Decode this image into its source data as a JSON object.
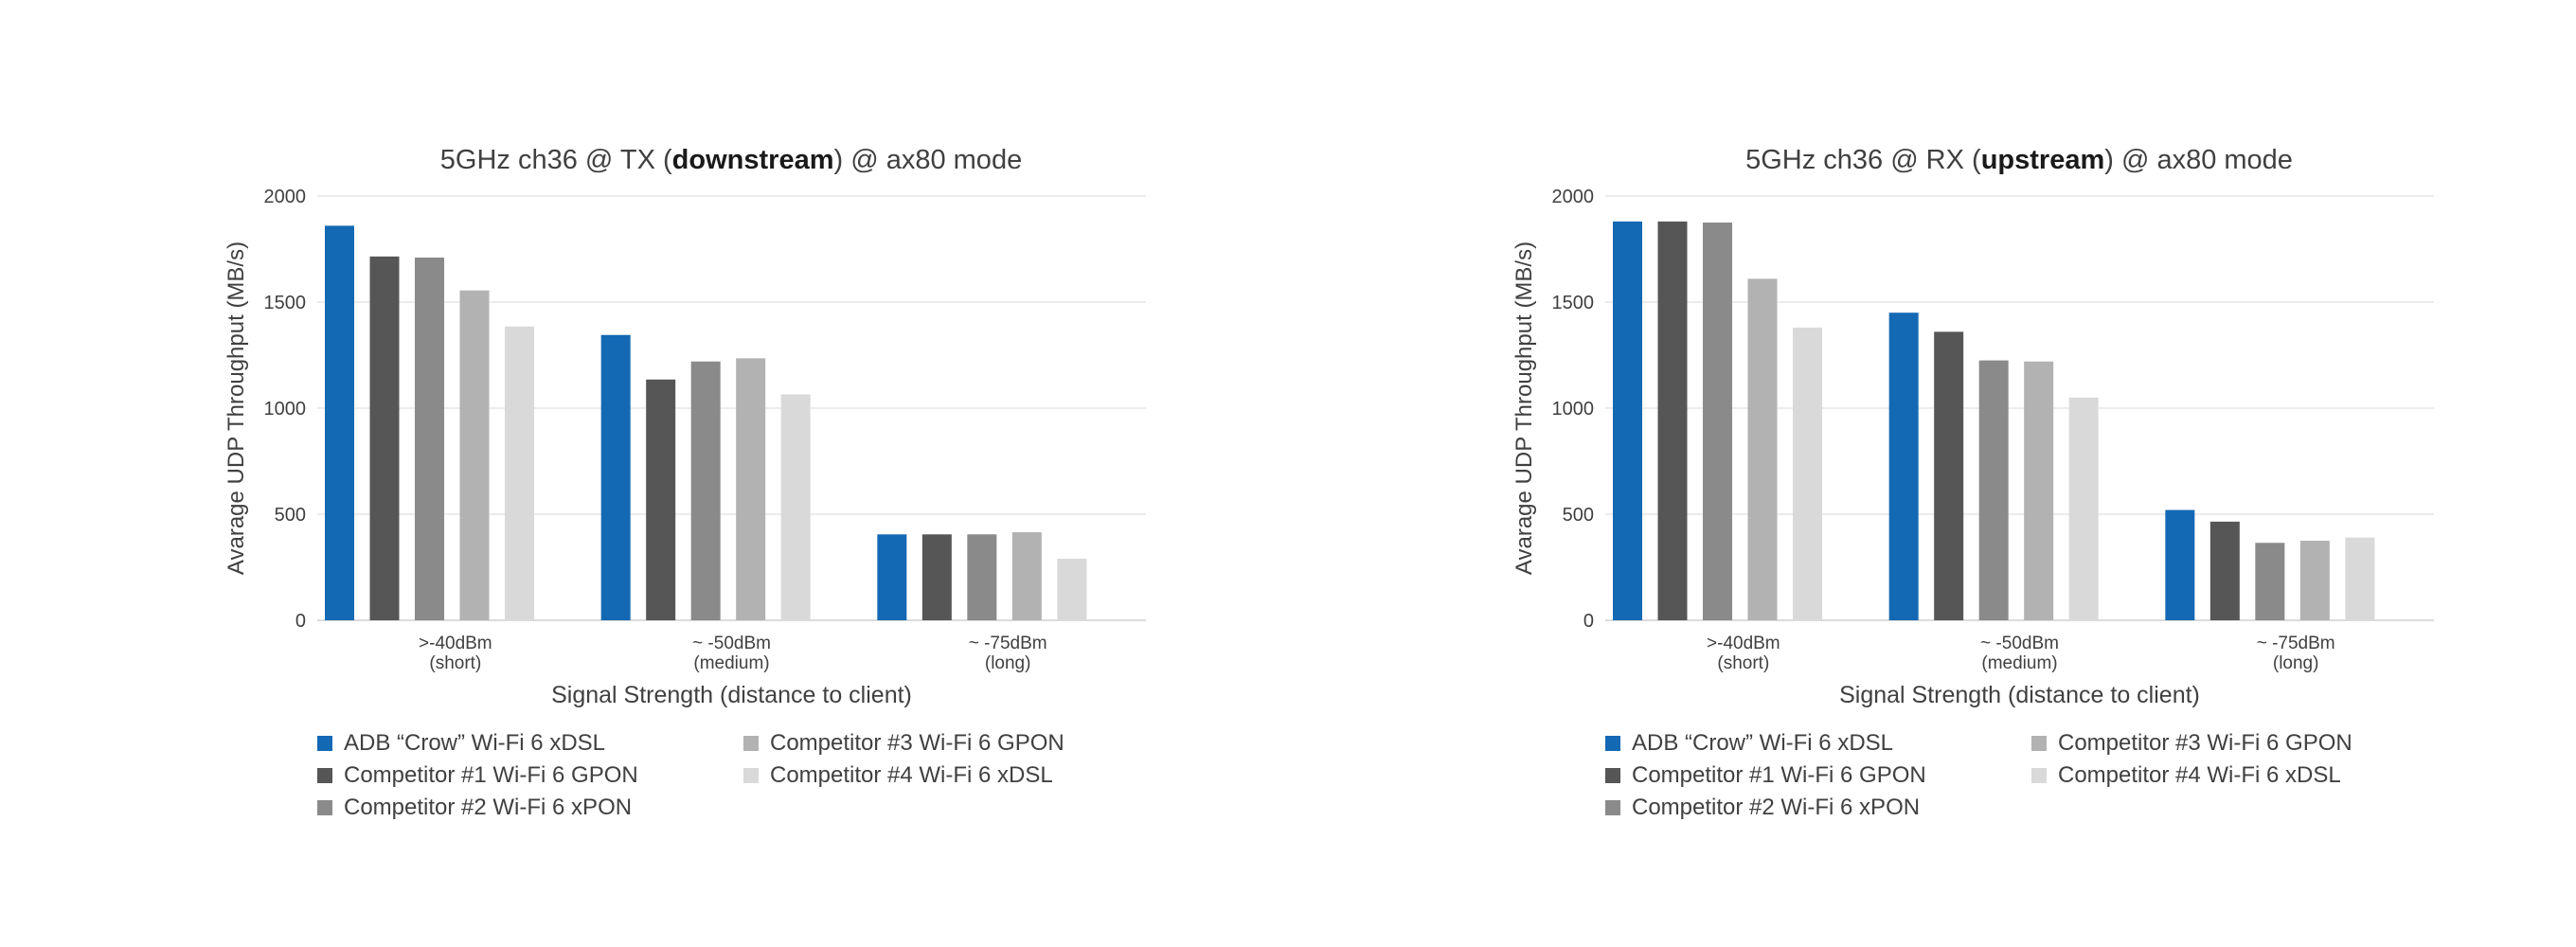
{
  "chart_data": [
    {
      "type": "bar",
      "title_parts": [
        "5GHz ch36 @ TX (",
        "downstream",
        ") @ ax80 mode"
      ],
      "xlabel": "Signal Strength (distance to client)",
      "ylabel": "Avarage UDP Throughput (MB/s)",
      "ylim": [
        0,
        2000
      ],
      "yticks": [
        0,
        500,
        1000,
        1500,
        2000
      ],
      "categories": [
        [
          ">-40dBm",
          "(short)"
        ],
        [
          "~ -50dBm",
          "(medium)"
        ],
        [
          "~ -75dBm",
          "(long)"
        ]
      ],
      "series": [
        {
          "name": "ADB “Crow” Wi-Fi 6 xDSL",
          "color": "#1469b4",
          "values": [
            1860,
            1345,
            405
          ]
        },
        {
          "name": "Competitor #1 Wi-Fi 6 GPON",
          "color": "#565656",
          "values": [
            1715,
            1135,
            405
          ]
        },
        {
          "name": "Competitor #2 Wi-Fi 6 xPON",
          "color": "#8a8a8a",
          "values": [
            1710,
            1220,
            405
          ]
        },
        {
          "name": "Competitor #3 Wi-Fi 6 GPON",
          "color": "#b2b2b2",
          "values": [
            1555,
            1235,
            415
          ]
        },
        {
          "name": "Competitor #4 Wi-Fi 6 xDSL",
          "color": "#d9d9d9",
          "values": [
            1385,
            1065,
            290
          ]
        }
      ],
      "grid": true,
      "legend": "bottom"
    },
    {
      "type": "bar",
      "title_parts": [
        "5GHz ch36 @ RX (",
        "upstream",
        ") @ ax80 mode"
      ],
      "xlabel": "Signal Strength (distance to client)",
      "ylabel": "Avarage UDP Throughput (MB/s)",
      "ylim": [
        0,
        2000
      ],
      "yticks": [
        0,
        500,
        1000,
        1500,
        2000
      ],
      "categories": [
        [
          ">-40dBm",
          "(short)"
        ],
        [
          "~ -50dBm",
          "(medium)"
        ],
        [
          "~ -75dBm",
          "(long)"
        ]
      ],
      "series": [
        {
          "name": "ADB “Crow” Wi-Fi 6 xDSL",
          "color": "#1469b4",
          "values": [
            1880,
            1450,
            520
          ]
        },
        {
          "name": "Competitor #1 Wi-Fi 6 GPON",
          "color": "#565656",
          "values": [
            1880,
            1360,
            465
          ]
        },
        {
          "name": "Competitor #2 Wi-Fi 6 xPON",
          "color": "#8a8a8a",
          "values": [
            1875,
            1225,
            365
          ]
        },
        {
          "name": "Competitor #3 Wi-Fi 6 GPON",
          "color": "#b2b2b2",
          "values": [
            1610,
            1220,
            375
          ]
        },
        {
          "name": "Competitor #4 Wi-Fi 6 xDSL",
          "color": "#d9d9d9",
          "values": [
            1380,
            1050,
            390
          ]
        }
      ],
      "grid": true,
      "legend": "bottom"
    }
  ]
}
